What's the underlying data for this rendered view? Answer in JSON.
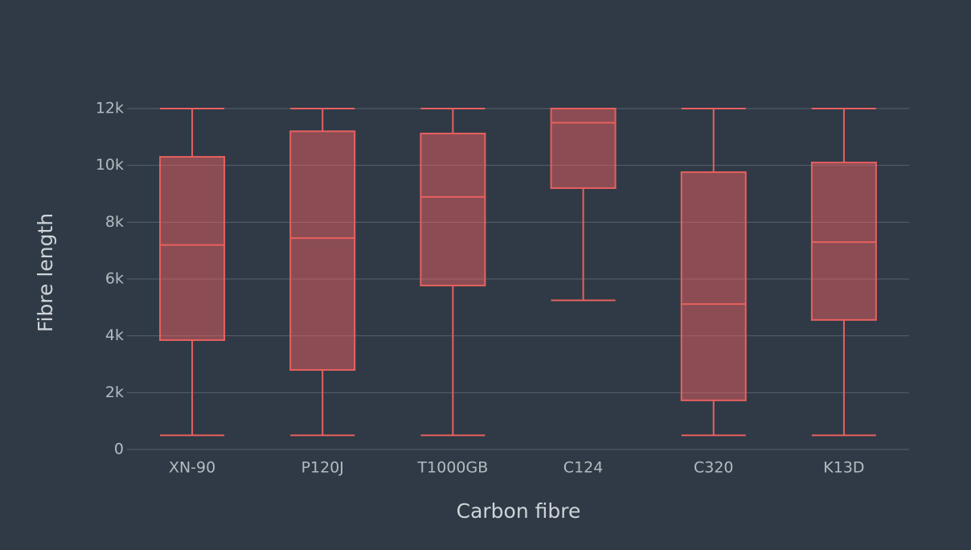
{
  "chart_data": {
    "type": "box",
    "x_label": "Carbon fibre",
    "y_label": "Fibre length",
    "categories": [
      "XN-90",
      "P120J",
      "T1000GB",
      "C124",
      "C320",
      "K13D"
    ],
    "min": [
      500,
      500,
      500,
      5250,
      500,
      500
    ],
    "q1": [
      3850,
      2800,
      5770,
      9200,
      1730,
      4560
    ],
    "median": [
      7200,
      7440,
      8890,
      11500,
      5120,
      7300
    ],
    "q3": [
      10300,
      11200,
      11120,
      12000,
      9760,
      10100
    ],
    "max": [
      12000,
      12000,
      12000,
      12000,
      12000,
      12000
    ],
    "color": "#e8605f",
    "fill": "rgba(232,96,95,0.5)",
    "ylim": [
      0,
      12000
    ],
    "yticks": [
      0,
      {
        "value": 2000,
        "label": "2k"
      },
      {
        "value": 4000,
        "label": "4k"
      },
      {
        "value": 6000,
        "label": "6k"
      },
      {
        "value": 8000,
        "label": "8k"
      },
      {
        "value": 10000,
        "label": "10k"
      },
      {
        "value": 12000,
        "label": "12k"
      }
    ],
    "grid": true
  }
}
